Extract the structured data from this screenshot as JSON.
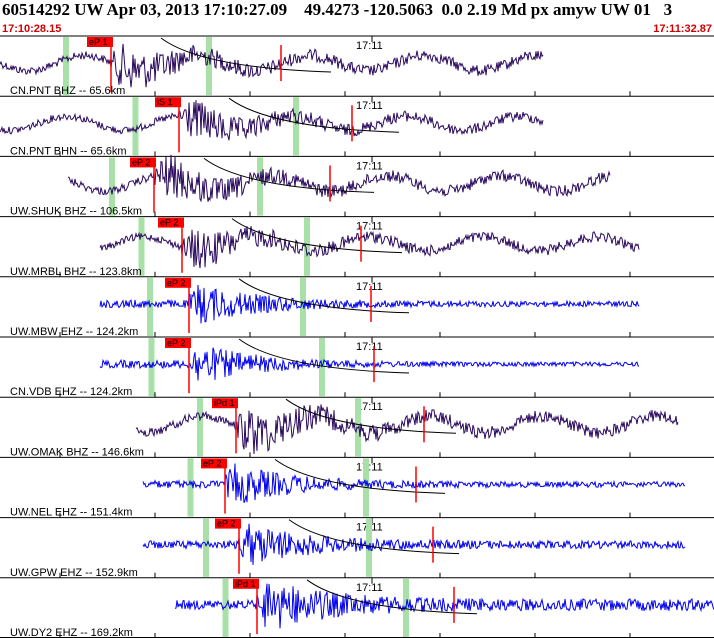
{
  "header": {
    "title": "60514292 UW Apr 03, 2013 17:10:27.09    49.4273 -120.5063  0.0 2.19 Md px amyw UW 01   3",
    "start_time": "17:10:28.15",
    "end_time": "17:11:32.87"
  },
  "minute_label": "17:11",
  "colors": {
    "short_period_trace": "#2a0a5e",
    "broadband_trace": "#0000ee",
    "pick_color": "#ff0000",
    "window_color": "#a8e0a8",
    "border": "#000000"
  },
  "traces": [
    {
      "label": "CN.PNT BHZ -- 65.6km",
      "pick": "eP 1",
      "color": "dark",
      "start": 0.0,
      "end": 0.76,
      "pick_x": 0.155,
      "amp": 22,
      "coda": 1.0
    },
    {
      "label": "CN.PNT BHN -- 65.6km",
      "pick": "iS 1",
      "color": "dark",
      "start": 0.0,
      "end": 0.76,
      "pick_x": 0.25,
      "amp": 20,
      "coda": 1.0
    },
    {
      "label": "UW.SHUK BHZ -- 106.5km",
      "pick": "eP 2",
      "color": "dark",
      "start": 0.095,
      "end": 0.855,
      "pick_x": 0.215,
      "amp": 22,
      "coda": 1.0
    },
    {
      "label": "UW.MRBL BHZ -- 123.8km",
      "pick": "eP 2",
      "color": "dark",
      "start": 0.14,
      "end": 0.895,
      "pick_x": 0.255,
      "amp": 20,
      "coda": 1.0
    },
    {
      "label": "UW.MBW EHZ -- 124.2km",
      "pick": "eP 2",
      "color": "blue",
      "start": 0.14,
      "end": 0.895,
      "pick_x": 0.265,
      "amp": 22,
      "coda": 0.5
    },
    {
      "label": "CN.VDB EHZ -- 124.2km",
      "pick": "eP 2",
      "color": "blue",
      "start": 0.14,
      "end": 0.895,
      "pick_x": 0.265,
      "amp": 22,
      "coda": 0.4
    },
    {
      "label": "UW.OMAK BHZ -- 146.6km",
      "pick": "iPd 1",
      "color": "dark",
      "start": 0.19,
      "end": 0.95,
      "pick_x": 0.33,
      "amp": 24,
      "coda": 1.0
    },
    {
      "label": "UW.NEL EHZ -- 151.4km",
      "pick": "eP 2",
      "color": "blue",
      "start": 0.2,
      "end": 0.96,
      "pick_x": 0.315,
      "amp": 22,
      "coda": 0.5
    },
    {
      "label": "UW.GPW EHZ -- 152.9km",
      "pick": "eP 2",
      "color": "blue",
      "start": 0.2,
      "end": 0.96,
      "pick_x": 0.335,
      "amp": 22,
      "coda": 0.7
    },
    {
      "label": "UW.DY2 EHZ -- 169.2km",
      "pick": "iPd 1",
      "color": "blue",
      "start": 0.245,
      "end": 1.0,
      "pick_x": 0.36,
      "amp": 26,
      "coda": 0.9
    }
  ]
}
